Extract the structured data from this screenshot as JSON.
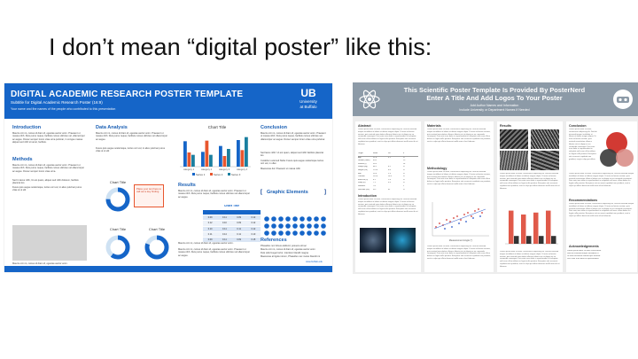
{
  "slide": {
    "title": "I don’t mean “digital poster” like this:"
  },
  "poster_a": {
    "title": "DIGITAL ACADEMIC RESEARCH POSTER TEMPLATE",
    "subtitle": "Subtitle for Digital Academic Research Poster (16:9)",
    "authors": "Your name and the names of the people who contributed to this presentation",
    "logo": {
      "mark": "UB",
      "line1": "University",
      "line2": "at Buffalo"
    },
    "sections": {
      "introduction": "Introduction",
      "methods": "Methods",
      "data_analysis": "Data Analysis",
      "results": "Results",
      "conclusion": "Conclusion",
      "graphic_elements": "Graphic Elements",
      "references": "References"
    },
    "chart_title_top": "Chart Title",
    "chart_title_donut": "Chart Title",
    "table_title": "Chart Title",
    "callout_text": "Place your text here to call out a key finding",
    "intro_body": "Mauris orci mi, cursus id diam id, egestas auctor enim. Praesent ut massa nibh. Duis purus neque, facilisis cursus ultricies vel, ullamcorper ac augue. Donec semper lorem vitae urna pulvinar, in congue massa aliquet sed nibh sit amet, facilisis.",
    "methods_body": "Mauris orci mi, cursus id diam id, egestas auctor enim. Praesent ut massa nibh. Duis purus neque, facilisis cursus ultricies vel ullamcorper ac augue. Donec semper lorem vitae urna.",
    "methods_items": [
      "Sed in lacus nibh, Ut est quam, aliquet sed nibh dolorem, facilisis placerat leo",
      "Fusce quis augue scelerisque, luctus orci vel, in aliex pulvinar purus vitae at ut elit"
    ],
    "analysis_body": "Mauris orci mi, cursus id diam id, egestas auctor enim. Praesent ut massa nibh. Duis purus neque, facilisis cursus ultricies vel ullamcorper ac augue.",
    "conclusion_body": "Mauris orci mi, cursus id diam id, egestas auctor enim. Praesent ut massa nibh. Duis purus neque, facilisis cursus ultricies vel, ullamcorper ac augue. Donec semper lorem vitae urna pulvinar.",
    "conclusion_items": [
      "Sed lacus nibh: Ut est quam, aliquet sed nibh facilisis placerat leo",
      "Curabitur euismod Nulla: Fusce quis augue scelerisque luctus orci vel, in ullex",
      "Maecenas dui: Praesent ut massa nibh"
    ],
    "results_body": "Mauris orci mi, cursus id diam id, egestas auctor enim. Praesent ut massa nibh. Duis purus neque, facilisis cursus ultricies vel ullamcorper ac augue.",
    "references_items": [
      "Phasellus non fulvus eleifend, posuere elit ac",
      "Mauris orci mi, cursus id diam id, egestas auctor enim",
      "Duis odio feuget tortor, interdum blandit magna",
      "Maecenas at ligula rutrum, Phasellus nec metus blandit mi"
    ],
    "caption": "Mauris orci mi, cursus id diam id, egestas auctor enim.",
    "footer_link": "www.buffalo.edu",
    "table": {
      "headers": [
        "",
        "",
        "",
        ""
      ],
      "rows": [
        [
          "0.09",
          "0.11",
          "0.09",
          "0.12"
        ],
        [
          "0.12",
          "0.10",
          "0.09",
          "0.12"
        ],
        [
          "0.10",
          "0.11",
          "0.11",
          "0.12"
        ],
        [
          "0.11",
          "0.14",
          "0.11",
          "0.10"
        ],
        [
          "0.09",
          "0.11",
          "0.09",
          "0.15"
        ]
      ]
    },
    "chart_data": {
      "type": "bar",
      "title": "Chart Title",
      "categories": [
        "category 1",
        "category 2",
        "category 3",
        "category 4"
      ],
      "series": [
        {
          "name": "Series 1",
          "values": [
            4.3,
            2.5,
            3.5,
            4.5
          ]
        },
        {
          "name": "Series 2",
          "values": [
            2.4,
            4.4,
            1.8,
            2.8
          ]
        },
        {
          "name": "Series 3",
          "values": [
            2.0,
            2.0,
            3.0,
            5.0
          ]
        }
      ],
      "ylim": [
        0,
        6
      ],
      "xlabel": "",
      "ylabel": ""
    },
    "legend": [
      "Series 1",
      "Series 2",
      "Series 3"
    ],
    "donut_values": [
      75,
      60,
      80,
      65
    ],
    "colors": {
      "header": "#1565c8",
      "series1": "#1565c8",
      "series2": "#e8562e",
      "series3": "#1a7fa0",
      "ring_bg": "#cfe2f3"
    }
  },
  "poster_b": {
    "title_line1": "This Scientific Poster Template Is Provided By PosterNerd",
    "title_line2": "Enter A Title And Add Logos To Your Poster",
    "authors": "Add Author Names and Information",
    "affiliation": "Include University or Department Names If Needed",
    "sections": {
      "abstract": "Abstract",
      "materials": "Materials",
      "results": "Results",
      "conclusion": "Conclusion",
      "methodology": "Methodology",
      "introduction": "Introduction",
      "recommendations": "Recommendations",
      "acknowledgements": "Acknowledgements"
    },
    "body_text": "Lorem ipsum dolor sit amet, consectetur adipiscing elit. Sed do eiusmod tempor incididunt ut labore et dolore magna aliqua. Ut enim ad minim veniam, quis nostrud exercitation ullamco laboris nisi ut aliquip ex ea commodo consequat. Duis aute irure dolor in reprehenderit in voluptate velit esse cillum dolore eu fugiat nulla pariatur. Excepteur sint occaecat cupidatat non proident, sunt in culpa qui officia deserunt mollit anim id est laborum.",
    "table_rows": [
      [
        "Target",
        "Mean",
        "SD",
        "n"
      ],
      [
        "Age",
        "21.8",
        "3.1",
        "27"
      ],
      [
        "Gender (male)",
        "49%",
        "",
        "13"
      ],
      [
        "Female (f)",
        "51%",
        "",
        "14"
      ],
      [
        "Weight (kg)",
        "68.1",
        "8.2",
        "27"
      ],
      [
        "Height (cm)",
        "170.4",
        "6.6",
        "27"
      ],
      [
        "BMI",
        "23.4",
        "2.3",
        "27"
      ],
      [
        "Caffeine",
        "119.6",
        "28.3",
        "27"
      ],
      [
        "Exercise (h)",
        "4.2",
        "1.8",
        "27"
      ],
      [
        "Sleep (h)",
        "7.1",
        "0.9",
        "27"
      ],
      [
        "Smokers",
        "7%",
        "",
        "2"
      ],
      [
        "Reaction (ms)",
        "312",
        "41",
        "27"
      ]
    ],
    "scatter_xlabel": "Measurement Angle (°)",
    "acknowledgement_items": [
      "Lorem ipsum dolor sit amet consectetur",
      "Sed do eiusmod tempor incididunt ut",
      "Ut enim ad minim veniam quis nostrud",
      "Duis aute irure dolor in reprehenderit"
    ],
    "chart_data": {
      "type": "bar",
      "categories": [
        "A",
        "B",
        "C",
        "D"
      ],
      "series": [
        {
          "name": "Series 1",
          "values": [
            8.5,
            7.5,
            8.0,
            8.5
          ]
        },
        {
          "name": "Series 2",
          "values": [
            2.0,
            2.0,
            2.0,
            2.0
          ]
        }
      ],
      "ylim": [
        0,
        10
      ],
      "title": "",
      "xlabel": "",
      "ylabel": ""
    },
    "colors": {
      "header": "#8c9aa7",
      "bar_red": "#e05a4a",
      "bar_dark": "#333333",
      "venn_red": "#d23a33",
      "venn_pink": "#d98f8a",
      "venn_dark": "#3a3a3a"
    }
  }
}
